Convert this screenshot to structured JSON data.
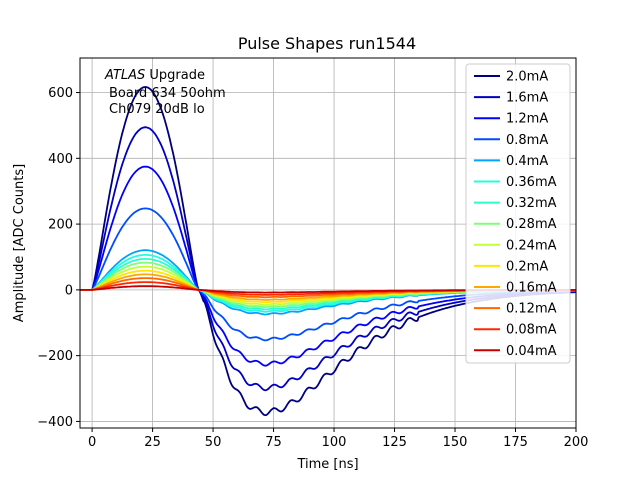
{
  "chart_data": {
    "type": "line",
    "title": "Pulse Shapes run1544",
    "xlabel": "Time [ns]",
    "ylabel": "Amplitude [ADC Counts]",
    "xlim": [
      -5,
      200
    ],
    "ylim": [
      -420,
      705
    ],
    "xticks": [
      0,
      25,
      50,
      75,
      100,
      125,
      150,
      175,
      200
    ],
    "yticks": [
      -400,
      -200,
      0,
      200,
      400,
      600
    ],
    "grid": true,
    "legend_position": "top-right",
    "annotation": {
      "line1_italic": "ATLAS",
      "line1_rest": " Upgrade",
      "line2": "Board 634 50ohm",
      "line3": "Ch079 20dB lo"
    },
    "series": [
      {
        "name": "2.0mA",
        "color": "#00007f",
        "peak": 655,
        "trough": -372
      },
      {
        "name": "1.6mA",
        "color": "#0000c4",
        "peak": 525,
        "trough": -298
      },
      {
        "name": "1.2mA",
        "color": "#0000ff",
        "peak": 398,
        "trough": -225
      },
      {
        "name": "0.8mA",
        "color": "#004dff",
        "peak": 263,
        "trough": -150
      },
      {
        "name": "0.4mA",
        "color": "#00a4ff",
        "peak": 128,
        "trough": -73
      },
      {
        "name": "0.36mA",
        "color": "#1fffe0",
        "peak": 113,
        "trough": -65
      },
      {
        "name": "0.32mA",
        "color": "#29ffce",
        "peak": 100,
        "trough": -58
      },
      {
        "name": "0.28mA",
        "color": "#7dff7a",
        "peak": 88,
        "trough": -51
      },
      {
        "name": "0.24mA",
        "color": "#c1ff36",
        "peak": 75,
        "trough": -44
      },
      {
        "name": "0.2mA",
        "color": "#ffe600",
        "peak": 62,
        "trough": -37
      },
      {
        "name": "0.16mA",
        "color": "#ffa600",
        "peak": 50,
        "trough": -30
      },
      {
        "name": "0.12mA",
        "color": "#ff6800",
        "peak": 38,
        "trough": -22
      },
      {
        "name": "0.08mA",
        "color": "#ff2900",
        "peak": 25,
        "trough": -15
      },
      {
        "name": "0.04mA",
        "color": "#c40000",
        "peak": 12,
        "trough": -8
      }
    ]
  }
}
